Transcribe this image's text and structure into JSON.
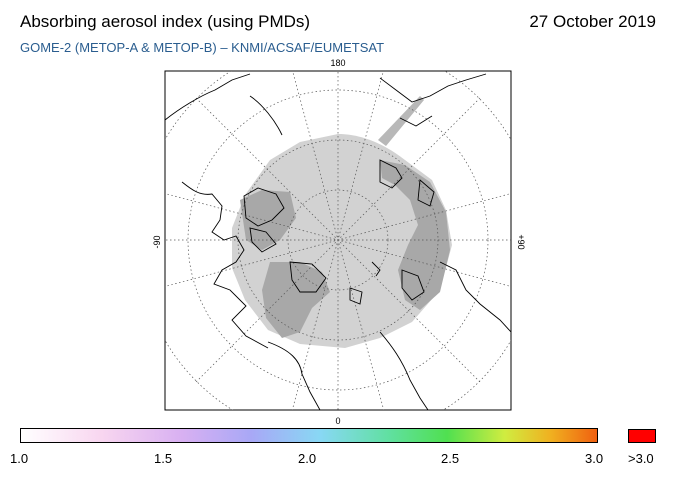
{
  "header": {
    "title": "Absorbing aerosol index (using PMDs)",
    "date": "27 October 2019",
    "subtitle": "GOME-2 (METOP-A & METOP-B)  –  KNMI/ACSAF/EUMETSAT"
  },
  "map": {
    "lon_labels": {
      "top": "180",
      "left": "-90",
      "right": "+90",
      "bottom": "0"
    },
    "colors": {
      "no_data_dark": "#a6a6a6",
      "no_data_light": "#d0d0d0",
      "coastline": "#000000",
      "grid": "#555555"
    }
  },
  "colorbar": {
    "tick_labels": [
      "1.0",
      "1.5",
      "2.0",
      "2.5",
      "3.0"
    ],
    "overflow_label": ">3.0",
    "overflow_color": "#ff0000",
    "min_color": "#ffffff",
    "max_color": "#f06010"
  }
}
